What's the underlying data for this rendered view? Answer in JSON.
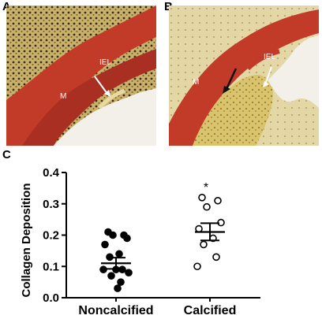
{
  "panels": {
    "a": {
      "label": "A",
      "marker_labels": [
        "IEL",
        "M"
      ]
    },
    "b": {
      "label": "B",
      "marker_labels": [
        "IEL",
        "M"
      ]
    },
    "c": {
      "label": "C"
    }
  },
  "colors": {
    "muscle": "#c23a28",
    "collagen": "#d8c46a",
    "tissue_pale": "#e4d7a6",
    "lumen": "#f3f0ea",
    "points": "#000000"
  },
  "chart_data": {
    "type": "scatter",
    "categories": [
      "Noncalcified",
      "Calcified"
    ],
    "ylabel": "Collagen Deposition",
    "xlabel": "",
    "ylim": [
      0,
      0.4
    ],
    "yticks": [
      0.0,
      0.1,
      0.2,
      0.3,
      0.4
    ],
    "ytick_labels": [
      "0.0",
      "0.1",
      "0.2",
      "0.3",
      "0.4"
    ],
    "grid": false,
    "series": [
      {
        "category": "Noncalcified",
        "marker": "filled-circle",
        "values": [
          0.21,
          0.2,
          0.2,
          0.19,
          0.17,
          0.14,
          0.13,
          0.09,
          0.09,
          0.09,
          0.08,
          0.07,
          0.05,
          0.03
        ],
        "mean": 0.11,
        "sem_low": 0.092,
        "sem_high": 0.128
      },
      {
        "category": "Calcified",
        "marker": "open-circle",
        "values": [
          0.32,
          0.31,
          0.29,
          0.24,
          0.22,
          0.19,
          0.17,
          0.13,
          0.1
        ],
        "mean": 0.21,
        "sem_low": 0.183,
        "sem_high": 0.238
      }
    ],
    "annotations": [
      {
        "text": "*",
        "category": "Calcified",
        "y": 0.36
      }
    ]
  }
}
